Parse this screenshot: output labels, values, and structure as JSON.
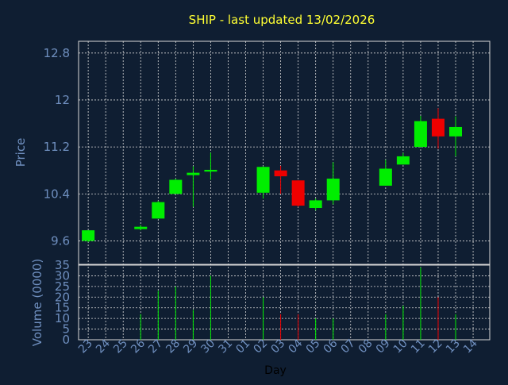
{
  "colors": {
    "background": "#0f1e32",
    "text_title": "#ffff33",
    "text_axis": "#6f8fbf",
    "text_xlabel": "#000000",
    "grid": "#d8d8d8",
    "up": "#00ee00",
    "down": "#ee0000"
  },
  "chart_data": {
    "type": "candlestick",
    "title": "SHIP - last updated 13/02/2026",
    "xlabel": "Day",
    "grid": true,
    "price_panel": {
      "ylabel": "Price",
      "ylim": [
        9.2,
        13.0
      ],
      "yticks": [
        "9.6",
        "10.4",
        "11.2",
        "12",
        "12.8"
      ],
      "ytick_values": [
        9.6,
        10.4,
        11.2,
        12.0,
        12.8
      ]
    },
    "volume_panel": {
      "ylabel": "Volume (0000)",
      "ylim": [
        0,
        35
      ],
      "yticks": [
        "0",
        "5",
        "10",
        "15",
        "20",
        "25",
        "30",
        "35"
      ],
      "ytick_values": [
        0,
        5,
        10,
        15,
        20,
        25,
        30,
        35
      ]
    },
    "x_ticks": [
      "23",
      "24",
      "25",
      "26",
      "27",
      "28",
      "29",
      "30",
      "31",
      "01",
      "02",
      "03",
      "04",
      "05",
      "06",
      "07",
      "08",
      "09",
      "10",
      "11",
      "12",
      "13",
      "14"
    ],
    "candles": [
      {
        "day": "23",
        "open": 9.6,
        "high": 9.78,
        "low": 9.58,
        "close": 9.78,
        "volume": 0
      },
      {
        "day": "26",
        "open": 9.8,
        "high": 9.87,
        "low": 9.78,
        "close": 9.84,
        "volume": 12
      },
      {
        "day": "27",
        "open": 9.98,
        "high": 10.28,
        "low": 9.98,
        "close": 10.26,
        "volume": 23
      },
      {
        "day": "28",
        "open": 10.4,
        "high": 10.66,
        "low": 10.4,
        "close": 10.64,
        "volume": 25
      },
      {
        "day": "29",
        "open": 10.72,
        "high": 10.87,
        "low": 10.18,
        "close": 10.76,
        "volume": 14
      },
      {
        "day": "30",
        "open": 10.78,
        "high": 11.1,
        "low": 10.64,
        "close": 10.81,
        "volume": 30
      },
      {
        "day": "02",
        "open": 10.42,
        "high": 10.87,
        "low": 10.32,
        "close": 10.86,
        "volume": 20
      },
      {
        "day": "03",
        "open": 10.8,
        "high": 10.88,
        "low": 10.4,
        "close": 10.7,
        "volume": 12
      },
      {
        "day": "04",
        "open": 10.63,
        "high": 10.63,
        "low": 10.18,
        "close": 10.2,
        "volume": 12
      },
      {
        "day": "05",
        "open": 10.16,
        "high": 10.32,
        "low": 10.12,
        "close": 10.29,
        "volume": 10
      },
      {
        "day": "06",
        "open": 10.29,
        "high": 10.94,
        "low": 10.22,
        "close": 10.66,
        "volume": 10
      },
      {
        "day": "09",
        "open": 10.54,
        "high": 10.98,
        "low": 10.54,
        "close": 10.83,
        "volume": 12
      },
      {
        "day": "10",
        "open": 10.9,
        "high": 11.1,
        "low": 10.9,
        "close": 11.04,
        "volume": 16
      },
      {
        "day": "11",
        "open": 11.2,
        "high": 11.73,
        "low": 11.2,
        "close": 11.64,
        "volume": 34
      },
      {
        "day": "12",
        "open": 11.68,
        "high": 11.86,
        "low": 11.17,
        "close": 11.38,
        "volume": 20
      },
      {
        "day": "13",
        "open": 11.38,
        "high": 11.72,
        "low": 11.04,
        "close": 11.54,
        "volume": 12
      }
    ]
  }
}
